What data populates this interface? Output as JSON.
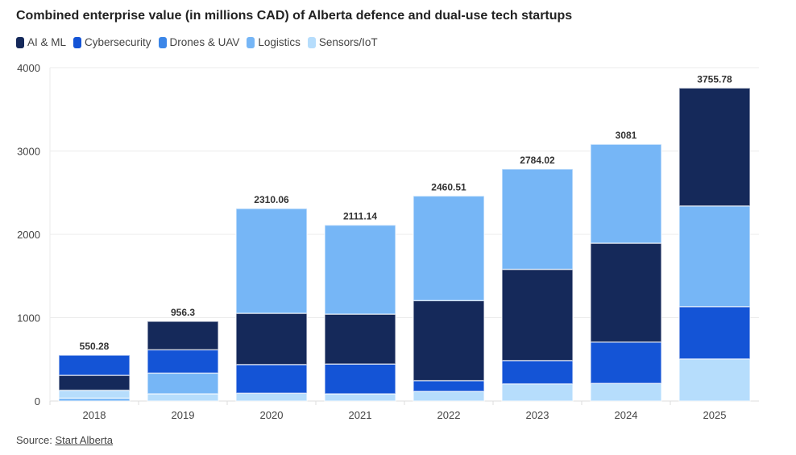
{
  "chart_data": {
    "type": "bar",
    "stacked": true,
    "title": "Combined enterprise value (in millions CAD) of Alberta defence and dual-use tech startups",
    "xlabel": "",
    "ylabel": "",
    "ylim": [
      0,
      4000
    ],
    "yticks": [
      0,
      1000,
      2000,
      3000,
      4000
    ],
    "grid": true,
    "legend_position": "top-left",
    "categories": [
      "2018",
      "2019",
      "2020",
      "2021",
      "2022",
      "2023",
      "2024",
      "2025"
    ],
    "totals": [
      "550.28",
      "956.3",
      "2310.06",
      "2111.14",
      "2460.51",
      "2784.02",
      "3081",
      "3755.78"
    ],
    "series": [
      {
        "name": "AI & ML",
        "color": "#15295a",
        "values": [
          179,
          341,
          615,
          599,
          960,
          1094,
          1186,
          1415
        ]
      },
      {
        "name": "Cybersecurity",
        "color": "#1454d6",
        "values": [
          241.28,
          280,
          344,
          357,
          129,
          280,
          496,
          628
        ]
      },
      {
        "name": "Drones & UAV",
        "color": "#3b86e8",
        "values": [
          0,
          0,
          0,
          0,
          0,
          0,
          0,
          0
        ]
      },
      {
        "name": "Logistics",
        "color": "#76b6f6",
        "values": [
          35,
          248.3,
          1257.06,
          1068.14,
          1255.51,
          1204.02,
          1187,
          1207.78
        ]
      },
      {
        "name": "Sensors/IoT",
        "color": "#b6ddfc",
        "values": [
          95,
          87,
          94,
          87,
          116,
          206,
          212,
          505
        ]
      }
    ],
    "stack_order_bottom_to_top": [
      [
        "Logistics",
        "Sensors/IoT",
        "AI & ML",
        "Cybersecurity"
      ],
      [
        "Sensors/IoT",
        "Logistics",
        "Cybersecurity",
        "AI & ML"
      ],
      [
        "Sensors/IoT",
        "Cybersecurity",
        "AI & ML",
        "Logistics"
      ],
      [
        "Sensors/IoT",
        "Cybersecurity",
        "AI & ML",
        "Logistics"
      ],
      [
        "Sensors/IoT",
        "Cybersecurity",
        "AI & ML",
        "Logistics"
      ],
      [
        "Sensors/IoT",
        "Cybersecurity",
        "AI & ML",
        "Logistics"
      ],
      [
        "Sensors/IoT",
        "Cybersecurity",
        "AI & ML",
        "Logistics"
      ],
      [
        "Sensors/IoT",
        "Cybersecurity",
        "Logistics",
        "AI & ML"
      ]
    ]
  },
  "source": {
    "label": "Source:",
    "link": "Start Alberta"
  }
}
